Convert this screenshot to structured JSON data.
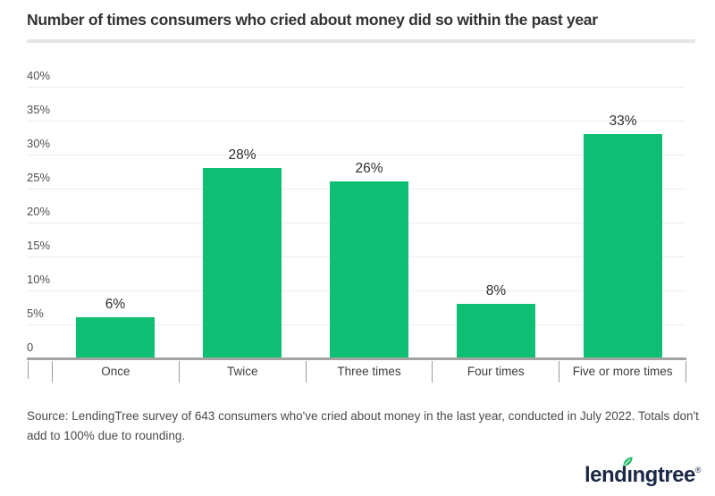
{
  "header": {
    "title": "Number of times consumers who cried about money did so within the past year"
  },
  "chart_data": {
    "type": "bar",
    "title": "Number of times consumers who cried about money did so within the past year",
    "categories": [
      "Once",
      "Twice",
      "Three times",
      "Four times",
      "Five or more times"
    ],
    "values": [
      6,
      28,
      26,
      8,
      33
    ],
    "value_labels": [
      "6%",
      "28%",
      "26%",
      "8%",
      "33%"
    ],
    "xlabel": "",
    "ylabel": "",
    "ylim": [
      0,
      40
    ],
    "ytick_step": 5,
    "ytick_labels": [
      "0",
      "5%",
      "10%",
      "15%",
      "20%",
      "25%",
      "30%",
      "35%",
      "40%"
    ],
    "grid": true,
    "legend": "none",
    "bar_color": "#0dbe73"
  },
  "footer": {
    "source_text": "Source: LendingTree survey of 643 consumers who've cried about money in the last year, conducted in July 2022. Totals don't add to 100% due to rounding.",
    "logo": {
      "pre": "lend",
      "dotless_i": "ı",
      "post": "ngtree",
      "registered": "®"
    }
  },
  "colors": {
    "bar": "#0dbe73",
    "leaf_green": "#1db964",
    "logo_navy": "#1b2946",
    "gridline": "#ececec",
    "axis_line": "#a3a3a3",
    "title_text": "#333333"
  }
}
